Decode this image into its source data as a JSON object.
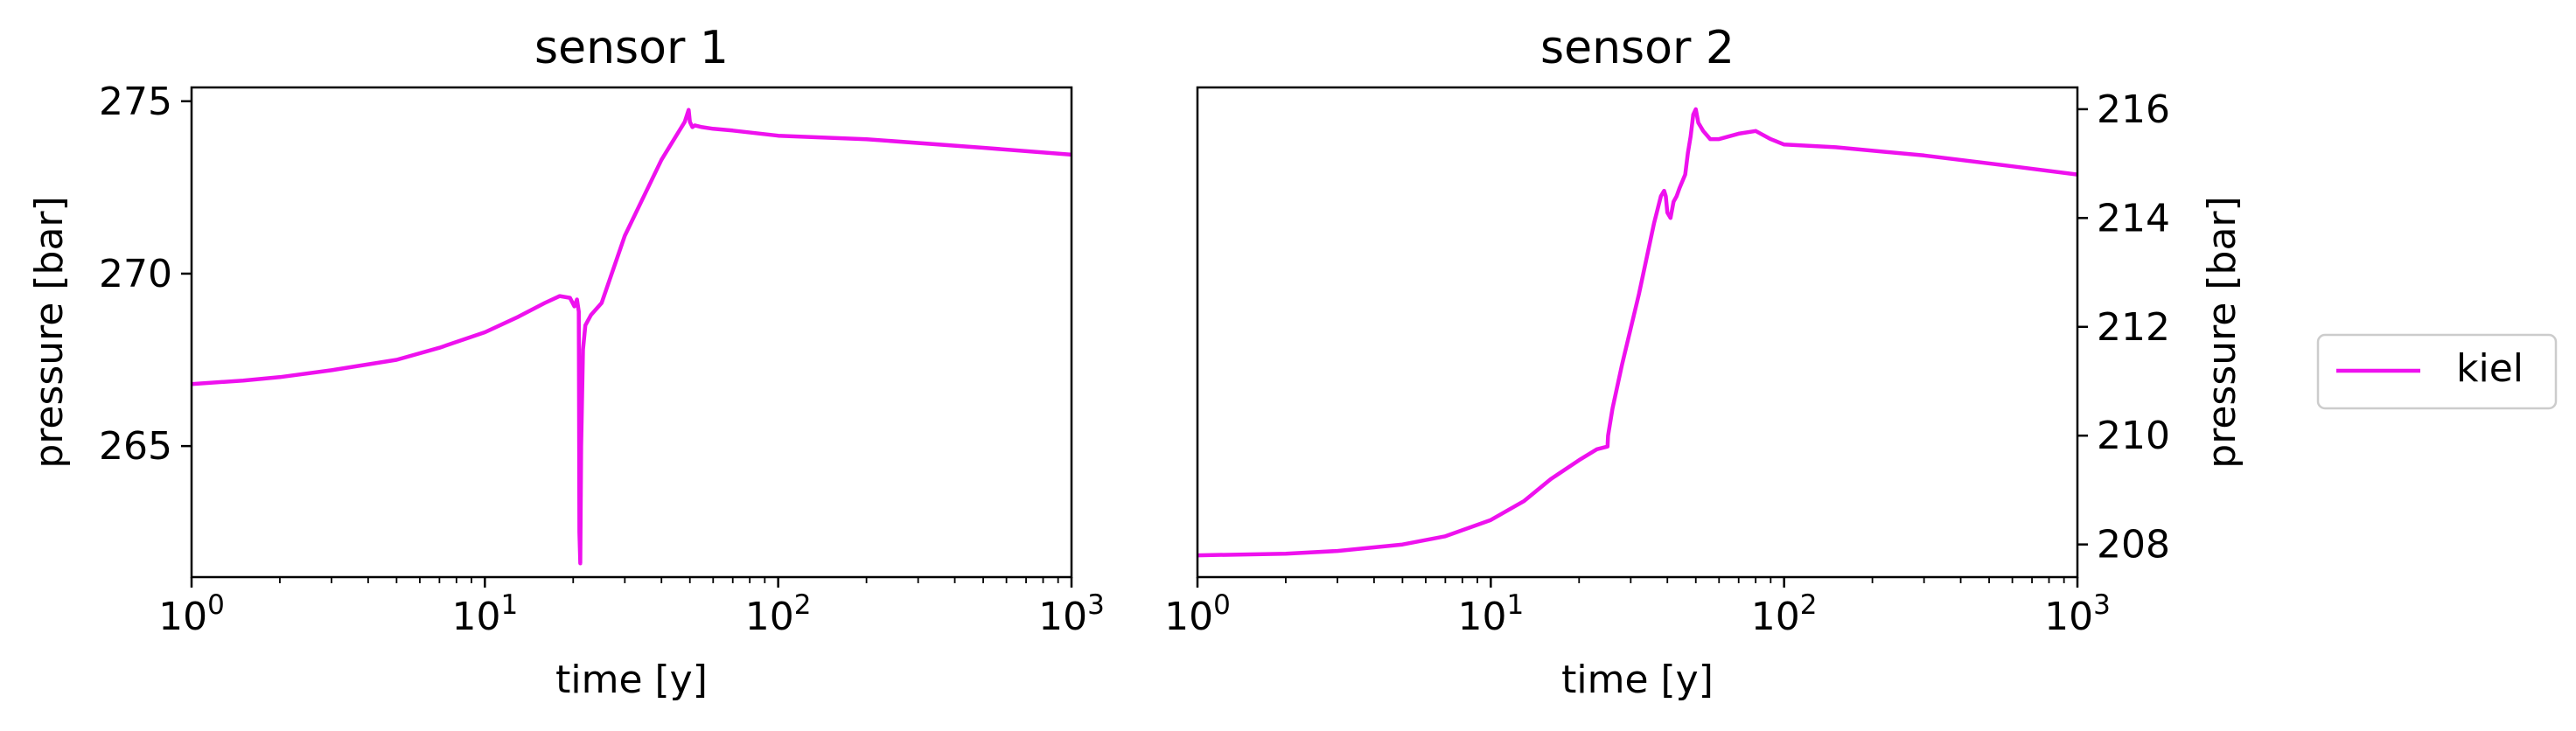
{
  "chart_data": [
    {
      "type": "line",
      "title": "sensor 1",
      "xlabel": "time [y]",
      "ylabel": "pressure [bar]",
      "xscale": "log",
      "xlim": [
        1,
        1000
      ],
      "ylim": [
        261.2,
        275.4
      ],
      "xtick_labels": [
        {
          "base": "10",
          "exp": "0",
          "value": 1
        },
        {
          "base": "10",
          "exp": "1",
          "value": 10
        },
        {
          "base": "10",
          "exp": "2",
          "value": 100
        },
        {
          "base": "10",
          "exp": "3",
          "value": 1000
        }
      ],
      "yticks": [
        265,
        270,
        275
      ],
      "ytick_labels": [
        "265",
        "270",
        "275"
      ],
      "yaxis_side": "left",
      "grid": false,
      "series": [
        {
          "name": "kiel",
          "color": "#ee11ee",
          "x": [
            1,
            1.5,
            2,
            3,
            5,
            7,
            10,
            13,
            16,
            18,
            19.5,
            20.2,
            20.6,
            20.9,
            21.0,
            21.15,
            21.3,
            21.6,
            22,
            23,
            25,
            30,
            40,
            48,
            49.5,
            50,
            51,
            52,
            55,
            60,
            70,
            100,
            200,
            500,
            1000
          ],
          "y": [
            266.8,
            266.9,
            267.0,
            267.2,
            267.5,
            267.85,
            268.3,
            268.75,
            269.15,
            269.35,
            269.3,
            269.05,
            269.25,
            268.9,
            262.5,
            261.6,
            265.0,
            267.8,
            268.5,
            268.8,
            269.15,
            271.1,
            273.3,
            274.4,
            274.75,
            274.4,
            274.25,
            274.3,
            274.25,
            274.2,
            274.15,
            274.0,
            273.9,
            273.65,
            273.45
          ]
        }
      ]
    },
    {
      "type": "line",
      "title": "sensor 2",
      "xlabel": "time [y]",
      "ylabel": "pressure [bar]",
      "xscale": "log",
      "xlim": [
        1,
        1000
      ],
      "ylim": [
        207.4,
        216.4
      ],
      "xtick_labels": [
        {
          "base": "10",
          "exp": "0",
          "value": 1
        },
        {
          "base": "10",
          "exp": "1",
          "value": 10
        },
        {
          "base": "10",
          "exp": "2",
          "value": 100
        },
        {
          "base": "10",
          "exp": "3",
          "value": 1000
        }
      ],
      "yticks": [
        208,
        210,
        212,
        214,
        216
      ],
      "ytick_labels": [
        "208",
        "210",
        "212",
        "214",
        "216"
      ],
      "yaxis_side": "right",
      "grid": false,
      "series": [
        {
          "name": "kiel",
          "color": "#ee11ee",
          "x": [
            1,
            2,
            3,
            5,
            7,
            10,
            13,
            16,
            20,
            23,
            25,
            25.1,
            26,
            28,
            32,
            36,
            38,
            39,
            39.5,
            40,
            41,
            42,
            43,
            44,
            46,
            47,
            48,
            49,
            50,
            51,
            53,
            56,
            60,
            70,
            80,
            90,
            100,
            150,
            300,
            600,
            1000
          ],
          "y": [
            207.8,
            207.83,
            207.88,
            208.0,
            208.15,
            208.45,
            208.8,
            209.2,
            209.55,
            209.75,
            209.8,
            210.0,
            210.5,
            211.3,
            212.6,
            213.9,
            214.4,
            214.5,
            214.4,
            214.1,
            214.0,
            214.3,
            214.4,
            214.55,
            214.8,
            215.2,
            215.5,
            215.9,
            216.0,
            215.75,
            215.6,
            215.45,
            215.45,
            215.55,
            215.6,
            215.45,
            215.35,
            215.3,
            215.15,
            214.95,
            214.8
          ]
        }
      ]
    }
  ],
  "legend": {
    "placement": "right, outside",
    "entries": [
      {
        "label": "kiel",
        "color": "#ee11ee"
      }
    ]
  }
}
